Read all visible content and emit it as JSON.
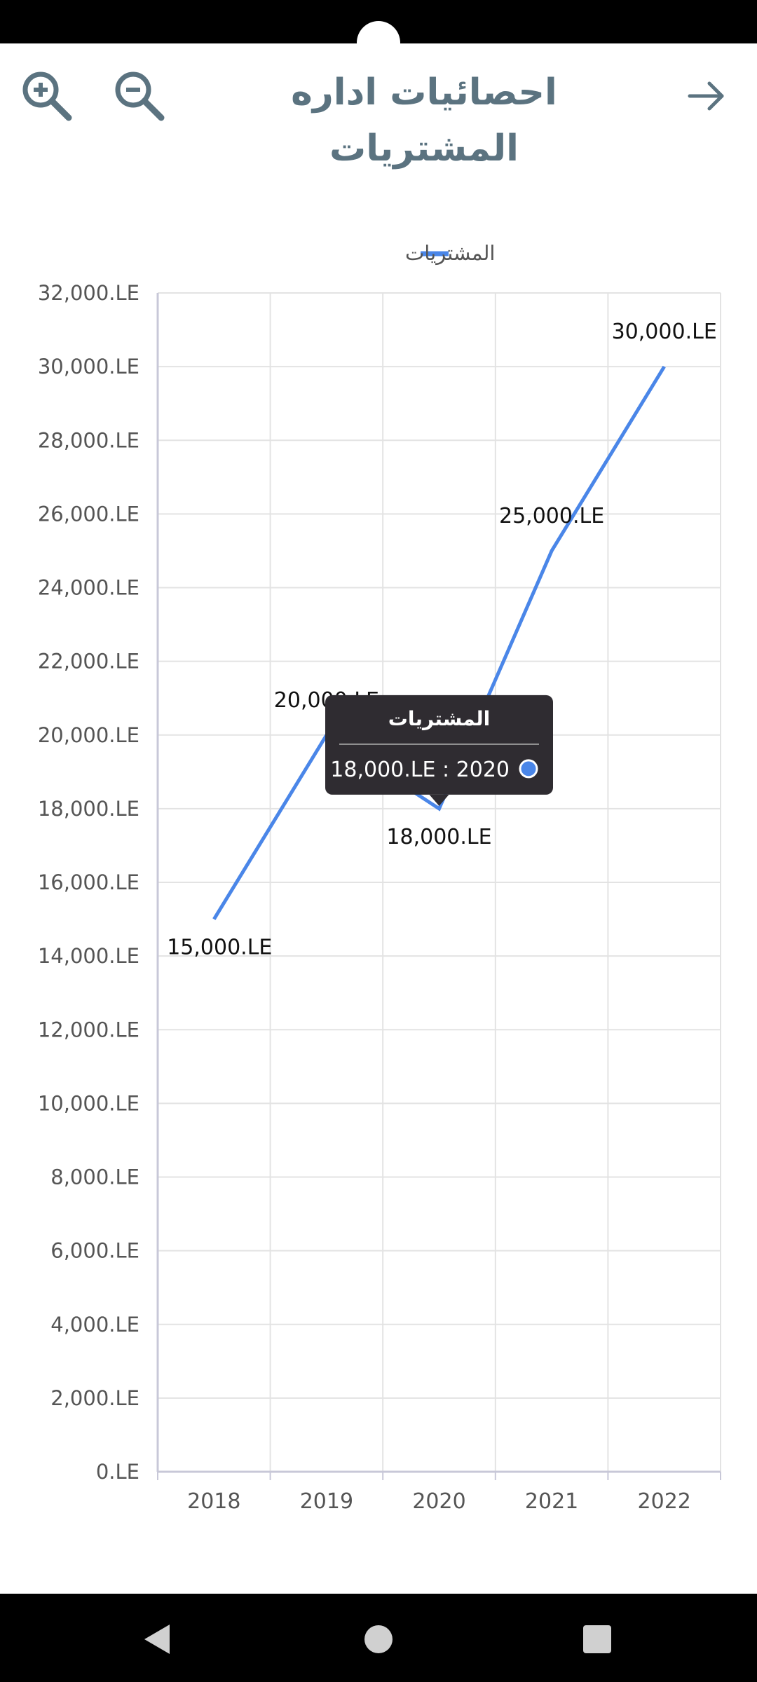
{
  "header": {
    "title": "احصائيات اداره المشتريات",
    "icons": [
      "zoom-in-icon",
      "zoom-out-icon",
      "arrow-right-icon"
    ]
  },
  "chart_data": {
    "type": "line",
    "title": "",
    "xlabel": "",
    "ylabel": "",
    "categories": [
      "2018",
      "2019",
      "2020",
      "2021",
      "2022"
    ],
    "series": [
      {
        "name": "المشتريات",
        "values": [
          15000,
          20000,
          18000,
          25000,
          30000
        ],
        "color": "#4a86e8"
      }
    ],
    "data_labels": [
      "15,000.LE",
      "20,000.LE",
      "18,000.LE",
      "25,000.LE",
      "30,000.LE"
    ],
    "y_ticks": [
      "0.LE",
      "2,000.LE",
      "4,000.LE",
      "6,000.LE",
      "8,000.LE",
      "10,000.LE",
      "12,000.LE",
      "14,000.LE",
      "16,000.LE",
      "18,000.LE",
      "20,000.LE",
      "22,000.LE",
      "24,000.LE",
      "26,000.LE",
      "28,000.LE",
      "30,000.LE",
      "32,000.LE"
    ],
    "ylim": [
      0,
      32000
    ],
    "grid": true,
    "legend": "top-center",
    "tooltip": {
      "title": "المشتريات",
      "text": "18,000.LE : 2020",
      "category_index": 2
    }
  },
  "colors": {
    "accent": "#4a86e8",
    "title": "#5b7380",
    "grid": "#e3e3e3",
    "axis": "#c8c8d8",
    "tooltip_bg": "#2f2c31"
  }
}
